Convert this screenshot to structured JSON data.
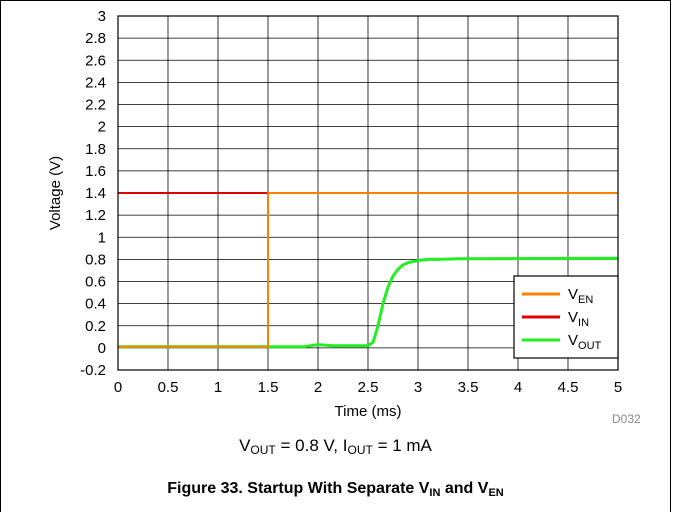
{
  "figure_id": "D032",
  "conditions": {
    "vout_label": "V",
    "vout_sub": "OUT",
    "vout_value": "= 0.8 V,",
    "iout_label": "I",
    "iout_sub": "OUT",
    "iout_value": "= 1 mA"
  },
  "caption": {
    "prefix": "Figure 33. Startup With Separate V",
    "sub1": "IN",
    "middle": "and V",
    "sub2": "EN"
  },
  "chart_data": {
    "type": "line",
    "xlabel": "Time (ms)",
    "ylabel": "Voltage (V)",
    "xlim": [
      0,
      5
    ],
    "ylim": [
      -0.2,
      3
    ],
    "x_ticks": [
      "0",
      "0.5",
      "1",
      "1.5",
      "2",
      "2.5",
      "3",
      "3.5",
      "4",
      "4.5",
      "5"
    ],
    "y_ticks": [
      "-0.2",
      "0",
      "0.2",
      "0.4",
      "0.6",
      "0.8",
      "1",
      "1.2",
      "1.4",
      "1.6",
      "1.8",
      "2",
      "2.2",
      "2.4",
      "2.6",
      "2.8",
      "3"
    ],
    "grid": true,
    "legend_position": "lower-right",
    "series": [
      {
        "name": "V",
        "name_sub": "EN",
        "color": "#ff7f00",
        "x": [
          0,
          1.5,
          1.5,
          5
        ],
        "y": [
          0.01,
          0.01,
          1.4,
          1.4
        ]
      },
      {
        "name": "V",
        "name_sub": "IN",
        "color": "#e00000",
        "x": [
          0,
          5
        ],
        "y": [
          1.4,
          1.4
        ]
      },
      {
        "name": "V",
        "name_sub": "OUT",
        "color": "#22ee22",
        "x": [
          0,
          1.85,
          2.0,
          2.15,
          2.5,
          2.55,
          2.6,
          2.65,
          2.7,
          2.75,
          2.8,
          2.85,
          2.9,
          3.0,
          3.1,
          3.2,
          3.4,
          5
        ],
        "y": [
          0.01,
          0.01,
          0.03,
          0.02,
          0.02,
          0.05,
          0.2,
          0.4,
          0.55,
          0.65,
          0.71,
          0.75,
          0.77,
          0.79,
          0.8,
          0.8,
          0.805,
          0.81
        ]
      }
    ]
  }
}
